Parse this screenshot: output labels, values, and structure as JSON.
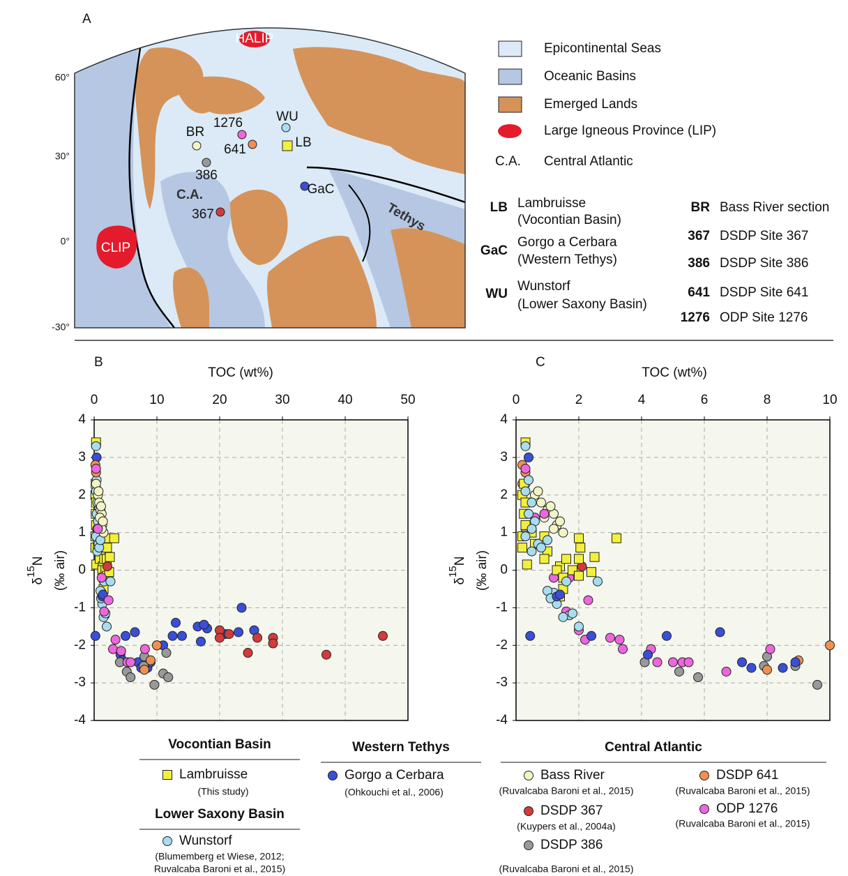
{
  "map": {
    "panel": "A",
    "lat_labels": [
      "60°",
      "30°",
      "0°",
      "-30°"
    ],
    "lips": [
      "HALIP",
      "CLIP"
    ],
    "sites": [
      {
        "label": "BR",
        "color": "#f3f4c6",
        "marker": "circle"
      },
      {
        "label": "1276",
        "color": "#ee66dd",
        "marker": "circle"
      },
      {
        "label": "WU",
        "color": "#a8dcef",
        "marker": "circle"
      },
      {
        "label": "641",
        "color": "#ef9050",
        "marker": "circle"
      },
      {
        "label": "LB",
        "color": "#f2f03c",
        "marker": "square"
      },
      {
        "label": "386",
        "color": "#999999",
        "marker": "circle"
      },
      {
        "label": "GaC",
        "color": "#3a4fd6",
        "marker": "circle"
      },
      {
        "label": "367",
        "color": "#d23b3b",
        "marker": "circle"
      }
    ],
    "region_labels": [
      "C.A.",
      "Tethys"
    ],
    "legend": [
      {
        "label": "Epicontinental Seas",
        "color": "#dbeaf6"
      },
      {
        "label": "Oceanic Basins",
        "color": "#b5c7e3"
      },
      {
        "label": "Emerged Lands",
        "color": "#d5935a"
      },
      {
        "label": "Large Igneous Province (LIP)",
        "color": "#e31b2c"
      }
    ],
    "abbreviation_legend": {
      "code": "C.A.",
      "label": "Central Atlantic"
    },
    "abbreviations": [
      {
        "code": "LB",
        "lines": [
          "Lambruisse",
          "(Vocontian Basin)"
        ]
      },
      {
        "code": "GaC",
        "lines": [
          "Gorgo a Cerbara",
          "(Western Tethys)"
        ]
      },
      {
        "code": "WU",
        "lines": [
          "Wunstorf",
          "(Lower Saxony Basin)"
        ]
      },
      {
        "code": "BR",
        "lines": [
          "Bass River section"
        ]
      },
      {
        "code": "367",
        "lines": [
          "DSDP Site 367"
        ]
      },
      {
        "code": "386",
        "lines": [
          "DSDP Site 386"
        ]
      },
      {
        "code": "641",
        "lines": [
          "DSDP Site 641"
        ]
      },
      {
        "code": "1276",
        "lines": [
          "ODP Site 1276"
        ]
      }
    ]
  },
  "chart_data": [
    {
      "type": "scatter",
      "panel": "B",
      "x_label": "TOC (wt%)",
      "y_label": [
        "δ",
        "15",
        "N"
      ],
      "y_label_units": "(‰ air)",
      "xlim": [
        0,
        50
      ],
      "xticks": [
        0,
        10,
        20,
        30,
        40,
        50
      ],
      "ylim": [
        -4,
        4
      ],
      "yticks": [
        -4,
        -3,
        -2,
        -1,
        0,
        1,
        2,
        3,
        4
      ],
      "grid": true,
      "legend_groups": [
        "Vocontian Basin",
        "Lower Saxony Basin",
        "Western Tethys"
      ],
      "series": [
        {
          "name": "Lambruisse",
          "citation": [
            "(This study)"
          ],
          "color": "#f2f03c",
          "marker": "square",
          "x": [
            0.3,
            0.25,
            0.2,
            0.3,
            0.25,
            0.3,
            0.2,
            0.2,
            0.35,
            0.5,
            0.6,
            0.9,
            1.0,
            0.9,
            1.4,
            1.3,
            1.5,
            1.6,
            1.8,
            2.0,
            2.05,
            2.0,
            2.0,
            2.4,
            2.5,
            3.2,
            1.4,
            1.5
          ],
          "y": [
            3.4,
            2.3,
            2.0,
            1.8,
            1.5,
            1.2,
            0.9,
            0.6,
            0.15,
            1.0,
            0.7,
            0.9,
            0.5,
            0.3,
            0.1,
            0.0,
            -0.2,
            0.3,
            0.0,
            0.85,
            0.6,
            0.3,
            -0.15,
            -0.05,
            0.35,
            0.85,
            -0.7,
            -0.5
          ]
        },
        {
          "name": "Wunstorf",
          "citation": [
            "(Blumemberg et Wiese, 2012;",
            "Ruvalcaba Baroni et al., 2015)"
          ],
          "color": "#a8dcef",
          "marker": "circle",
          "x": [
            0.3,
            0.4,
            0.3,
            0.5,
            0.4,
            0.6,
            0.5,
            0.3,
            0.7,
            0.5,
            0.8,
            1.0,
            1.6,
            1.2,
            1.3,
            1.7,
            1.5,
            1.8,
            2.0,
            2.6,
            1.0,
            1.1
          ],
          "y": [
            3.3,
            2.4,
            2.1,
            1.8,
            1.5,
            1.3,
            1.1,
            0.9,
            0.7,
            0.5,
            0.6,
            0.8,
            -0.3,
            -0.6,
            -0.9,
            -1.2,
            -1.25,
            -1.15,
            -1.5,
            -0.3,
            -0.55,
            -0.75
          ]
        },
        {
          "name": "Gorgo a Cerbara",
          "citation": [
            "(Ohkouchi et al., 2006)"
          ],
          "color": "#3a4fd6",
          "marker": "circle",
          "x": [
            0.2,
            0.4,
            1.3,
            1.4,
            4.2,
            4.5,
            5,
            6.5,
            7,
            7.5,
            8,
            8.5,
            9,
            10,
            11,
            12.5,
            13,
            14,
            16.5,
            17,
            18,
            21,
            23,
            23.5,
            25.5,
            17.5
          ],
          "y": [
            -1.75,
            3.0,
            -0.7,
            -0.65,
            -2.25,
            -2.4,
            -1.75,
            -1.65,
            -2.45,
            -2.6,
            -2.55,
            -2.6,
            -2.45,
            -2.0,
            -2.0,
            -1.75,
            -1.4,
            -1.75,
            -1.5,
            -1.9,
            -1.55,
            -1.7,
            -1.65,
            -1.0,
            -1.6,
            -1.45
          ]
        },
        {
          "color": "#f3f4c6",
          "marker": "circle",
          "x": [
            0.3,
            0.6,
            0.8,
            1.0,
            1.2,
            1.3,
            1.5,
            0.9,
            1.1,
            0.7,
            1.2,
            1.4
          ],
          "y": [
            2.3,
            2.0,
            1.8,
            1.6,
            1.5,
            1.2,
            1.0,
            1.4,
            1.7,
            2.1,
            1.1,
            1.3
          ]
        },
        {
          "color": "#d23b3b",
          "marker": "circle",
          "x": [
            2.1,
            20,
            21.5,
            20,
            24.5,
            26,
            28.5,
            28.5,
            37,
            46
          ],
          "y": [
            0.1,
            -1.6,
            -1.7,
            -1.8,
            -2.2,
            -1.8,
            -1.8,
            -1.95,
            -2.25,
            -1.75
          ]
        },
        {
          "color": "#999999",
          "marker": "circle",
          "x": [
            4.1,
            5.2,
            5.8,
            7.9,
            8,
            9.6,
            11,
            11.8,
            11.5
          ],
          "y": [
            -2.45,
            -2.7,
            -2.85,
            -2.55,
            -2.3,
            -3.05,
            -2.75,
            -2.85,
            -2.2
          ]
        },
        {
          "color": "#ef9050",
          "marker": "circle",
          "x": [
            0.2,
            0.3,
            8.0,
            9.0,
            10
          ],
          "y": [
            2.8,
            2.6,
            -2.65,
            -2.4,
            -2.0
          ]
        },
        {
          "color": "#ee66dd",
          "marker": "circle",
          "x": [
            0.3,
            0.6,
            1.2,
            1.6,
            2.3,
            3,
            3.4,
            4.3,
            5.3,
            5.8,
            8.1
          ],
          "y": [
            2.7,
            1.1,
            -0.2,
            -1.1,
            -0.8,
            -2.1,
            -1.85,
            -2.15,
            -2.45,
            -2.45,
            -2.1
          ]
        }
      ]
    },
    {
      "type": "scatter",
      "panel": "C",
      "x_label": "TOC (wt%)",
      "y_label": [
        "δ",
        "15",
        "N"
      ],
      "y_label_units": "(‰ air)",
      "xlim": [
        0,
        10
      ],
      "xticks": [
        0,
        2,
        4,
        6,
        8,
        10
      ],
      "ylim": [
        -4,
        4
      ],
      "yticks": [
        -4,
        -3,
        -2,
        -1,
        0,
        1,
        2,
        3,
        4
      ],
      "grid": true,
      "legend_groups": [
        "Central Atlantic"
      ],
      "series": [
        {
          "name": "Bass River",
          "citation": [
            "(Ruvalcaba Baroni et al., 2015)"
          ],
          "color": "#f3f4c6",
          "marker": "circle",
          "x": [
            0.3,
            0.6,
            0.8,
            1.0,
            1.2,
            1.3,
            1.5,
            0.9,
            1.1,
            0.7,
            1.2,
            1.4
          ],
          "y": [
            2.3,
            2.0,
            1.8,
            1.6,
            1.5,
            1.2,
            1.0,
            1.4,
            1.7,
            2.1,
            1.1,
            1.3
          ]
        },
        {
          "name": "DSDP 367",
          "citation": [
            "(Kuypers et al., 2004a)"
          ],
          "color": "#d23b3b",
          "marker": "circle",
          "x": [
            2.1
          ],
          "y": [
            0.1
          ]
        },
        {
          "name": "DSDP 386",
          "citation": [
            "(Ruvalcaba Baroni et al., 2015)"
          ],
          "color": "#999999",
          "marker": "circle",
          "x": [
            0.3,
            4.1,
            5.2,
            5.8,
            7.9,
            8.0,
            8.9,
            9.6
          ],
          "y": [
            1.1,
            -2.45,
            -2.7,
            -2.85,
            -2.55,
            -2.3,
            -2.55,
            -3.05
          ]
        },
        {
          "name": "DSDP 641",
          "citation": [
            "(Ruvalcaba Baroni et al., 2015)"
          ],
          "color": "#ef9050",
          "marker": "circle",
          "x": [
            0.2,
            0.3,
            0.2,
            8.0,
            9.0,
            10.0
          ],
          "y": [
            2.8,
            2.6,
            2.3,
            -2.65,
            -2.4,
            -2.0
          ]
        },
        {
          "name": "ODP 1276",
          "citation": [
            "(Ruvalcaba Baroni et al., 2015)"
          ],
          "color": "#ee66dd",
          "marker": "circle",
          "x": [
            0.3,
            0.6,
            0.9,
            1.7,
            1.6,
            2.3,
            2.0,
            2.2,
            3.0,
            3.3,
            3.4,
            4.3,
            4.5,
            5.0,
            5.3,
            5.5,
            6.7,
            8.1,
            1.2
          ],
          "y": [
            2.7,
            1.4,
            1.5,
            -0.2,
            -1.1,
            -0.8,
            -1.6,
            -1.85,
            -1.8,
            -1.85,
            -2.1,
            -2.1,
            -2.45,
            -2.45,
            -2.45,
            -2.45,
            -2.7,
            -2.1,
            -0.2
          ]
        },
        {
          "color": "#f2f03c",
          "marker": "square",
          "x": [
            0.3,
            0.25,
            0.2,
            0.3,
            0.25,
            0.3,
            0.2,
            0.2,
            0.35,
            0.5,
            0.6,
            0.9,
            1.0,
            0.9,
            1.4,
            1.3,
            1.5,
            1.6,
            1.8,
            2.0,
            2.05,
            2.0,
            2.0,
            2.4,
            2.5,
            3.2,
            1.4,
            1.5
          ],
          "y": [
            3.4,
            2.3,
            2.0,
            1.8,
            1.5,
            1.2,
            0.9,
            0.6,
            0.15,
            1.0,
            0.7,
            0.9,
            0.5,
            0.3,
            0.1,
            0.0,
            -0.2,
            0.3,
            0.0,
            0.85,
            0.6,
            0.3,
            -0.15,
            -0.05,
            0.35,
            0.85,
            -0.7,
            -0.5
          ]
        },
        {
          "color": "#a8dcef",
          "marker": "circle",
          "x": [
            0.3,
            0.4,
            0.3,
            0.5,
            0.4,
            0.6,
            0.5,
            0.3,
            0.7,
            0.5,
            0.8,
            1.0,
            1.6,
            1.2,
            1.3,
            1.7,
            1.5,
            1.8,
            2.0,
            2.6,
            1.0,
            1.1
          ],
          "y": [
            3.3,
            2.4,
            2.1,
            1.8,
            1.5,
            1.3,
            1.1,
            0.9,
            0.7,
            0.5,
            0.6,
            0.8,
            -0.3,
            -0.6,
            -0.9,
            -1.2,
            -1.25,
            -1.15,
            -1.5,
            -0.3,
            -0.55,
            -0.75
          ]
        },
        {
          "color": "#3a4fd6",
          "marker": "circle",
          "x": [
            0.4,
            1.3,
            1.4,
            2.4,
            4.2,
            4.8,
            6.5,
            7.2,
            7.5,
            8.5,
            8.9,
            0.45
          ],
          "y": [
            3.0,
            -0.7,
            -0.65,
            -1.75,
            -2.25,
            -1.75,
            -1.65,
            -2.45,
            -2.6,
            -2.6,
            -2.45,
            -1.75
          ]
        }
      ]
    }
  ]
}
